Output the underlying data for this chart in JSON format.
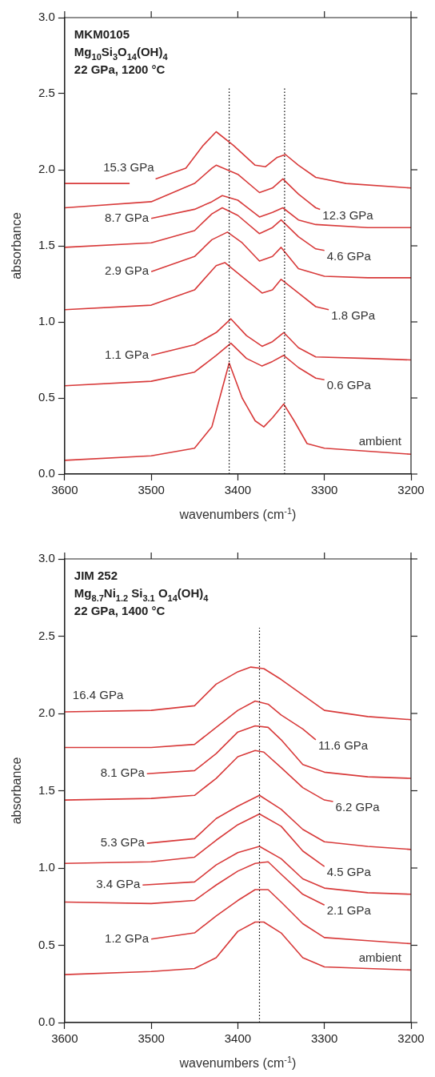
{
  "chart_data": [
    {
      "type": "line",
      "xlabel": "wavenumbers (cm$^{-1}$)",
      "ylabel": "absorbance",
      "xlim": [
        3600,
        3200
      ],
      "xticks": [
        3600,
        3500,
        3400,
        3300,
        3200
      ],
      "ylim": [
        0,
        3
      ],
      "yticks": [
        {
          "value": 0,
          "label": "0.0"
        },
        {
          "value": 0.5,
          "label": "0.5"
        },
        {
          "value": 1,
          "label": "1.0"
        },
        {
          "value": 1.5,
          "label": "1.5"
        },
        {
          "value": 2,
          "label": "2.0"
        },
        {
          "value": 2.5,
          "label": "2.5"
        },
        {
          "value": 3,
          "label": "3.0"
        }
      ],
      "grid": false,
      "marker": "none",
      "line_style": "solid",
      "ref_lines": [
        {
          "axis": "x",
          "value": 3410,
          "color": "#000000",
          "line_style": "dotted"
        },
        {
          "axis": "x",
          "value": 3346,
          "color": "#000000",
          "line_style": "dotted"
        }
      ],
      "annotations": [
        "MKM0105",
        "Mg$_{10}$Si$_{3}$O$_{14}$(OH)$_{4}$",
        "22 GPa, 1200 °C"
      ],
      "series": [
        {
          "name": "ambient",
          "color": "#d83a3a",
          "x": [
            3600,
            3500,
            3450,
            3430,
            3420,
            3410,
            3395,
            3380,
            3370,
            3360,
            3347,
            3335,
            3320,
            3300,
            3250,
            3200
          ],
          "values": [
            0.09,
            0.12,
            0.17,
            0.31,
            0.52,
            0.73,
            0.5,
            0.35,
            0.31,
            0.37,
            0.46,
            0.35,
            0.2,
            0.17,
            0.15,
            0.13
          ]
        },
        {
          "name": "0.6 GPa",
          "color": "#d83a3a",
          "x": [
            3600,
            3500,
            3450,
            3425,
            3408,
            3390,
            3372,
            3360,
            3347,
            3330,
            3310,
            3300
          ],
          "values": [
            0.58,
            0.61,
            0.67,
            0.78,
            0.86,
            0.76,
            0.71,
            0.74,
            0.78,
            0.7,
            0.63,
            0.62
          ]
        },
        {
          "name": "1.1 GPa",
          "color": "#d83a3a",
          "x": [
            3500,
            3450,
            3425,
            3408,
            3390,
            3372,
            3360,
            3347,
            3330,
            3310,
            3250,
            3200
          ],
          "values": [
            0.78,
            0.85,
            0.93,
            1.02,
            0.91,
            0.84,
            0.87,
            0.93,
            0.83,
            0.77,
            0.76,
            0.75
          ]
        },
        {
          "name": "1.8 GPa",
          "color": "#d83a3a",
          "x": [
            3600,
            3500,
            3450,
            3425,
            3415,
            3400,
            3372,
            3360,
            3350,
            3330,
            3310,
            3295
          ],
          "values": [
            1.08,
            1.11,
            1.21,
            1.37,
            1.39,
            1.32,
            1.19,
            1.21,
            1.28,
            1.19,
            1.1,
            1.08
          ]
        },
        {
          "name": "2.9 GPa",
          "color": "#d83a3a",
          "x": [
            3500,
            3450,
            3430,
            3412,
            3395,
            3375,
            3360,
            3350,
            3330,
            3300,
            3250,
            3200
          ],
          "values": [
            1.33,
            1.43,
            1.54,
            1.59,
            1.52,
            1.4,
            1.43,
            1.49,
            1.35,
            1.3,
            1.29,
            1.29
          ]
        },
        {
          "name": "4.6 GPa",
          "color": "#d83a3a",
          "x": [
            3600,
            3500,
            3450,
            3430,
            3418,
            3400,
            3375,
            3360,
            3350,
            3330,
            3310,
            3300
          ],
          "values": [
            1.49,
            1.52,
            1.6,
            1.71,
            1.75,
            1.7,
            1.58,
            1.62,
            1.67,
            1.56,
            1.48,
            1.47
          ]
        },
        {
          "name": "8.7 GPa",
          "color": "#d83a3a",
          "x": [
            3500,
            3450,
            3430,
            3418,
            3400,
            3375,
            3360,
            3348,
            3330,
            3310,
            3250,
            3200
          ],
          "values": [
            1.68,
            1.74,
            1.79,
            1.83,
            1.8,
            1.69,
            1.72,
            1.75,
            1.67,
            1.64,
            1.62,
            1.62
          ]
        },
        {
          "name": "12.3 GPa",
          "color": "#d83a3a",
          "x": [
            3600,
            3500,
            3450,
            3430,
            3425,
            3400,
            3375,
            3360,
            3348,
            3330,
            3310,
            3305
          ],
          "values": [
            1.75,
            1.79,
            1.91,
            2.01,
            2.03,
            1.97,
            1.85,
            1.88,
            1.94,
            1.84,
            1.75,
            1.74
          ]
        },
        {
          "name": "15.3 GPa",
          "color": "#d83a3a",
          "x": [
            3600,
            3525,
            3510,
            3495,
            3460,
            3440,
            3425,
            3405,
            3380,
            3368,
            3355,
            3345,
            3330,
            3310,
            3275,
            3200
          ],
          "values": [
            1.91,
            1.91,
            null,
            1.94,
            2.01,
            2.16,
            2.25,
            2.16,
            2.03,
            2.02,
            2.08,
            2.1,
            2.03,
            1.95,
            1.91,
            1.88
          ]
        }
      ]
    },
    {
      "type": "line",
      "xlabel": "wavenumbers (cm$^{-1}$)",
      "ylabel": "absorbance",
      "xlim": [
        3600,
        3200
      ],
      "xticks": [
        3600,
        3500,
        3400,
        3300,
        3200
      ],
      "ylim": [
        0,
        3
      ],
      "yticks": [
        {
          "value": 0,
          "label": "0.0"
        },
        {
          "value": 0.5,
          "label": "0.5"
        },
        {
          "value": 1,
          "label": "1.0"
        },
        {
          "value": 1.5,
          "label": "1.5"
        },
        {
          "value": 2,
          "label": "2.0"
        },
        {
          "value": 2.5,
          "label": "2.5"
        },
        {
          "value": 3,
          "label": "3.0"
        }
      ],
      "grid": false,
      "marker": "none",
      "line_style": "solid",
      "ref_lines": [
        {
          "axis": "x",
          "value": 3375,
          "color": "#000000",
          "line_style": "dotted"
        }
      ],
      "annotations": [
        "JIM 252",
        "Mg$_{8.7}$Ni$_{1.2}$ Si$_{3.1}$ O$_{14}$(OH)$_{4}$",
        "22 GPa, 1400 °C"
      ],
      "series": [
        {
          "name": "ambient",
          "color": "#d83a3a",
          "x": [
            3600,
            3500,
            3450,
            3425,
            3400,
            3380,
            3370,
            3350,
            3325,
            3300,
            3250,
            3200
          ],
          "values": [
            0.31,
            0.33,
            0.35,
            0.42,
            0.59,
            0.65,
            0.65,
            0.58,
            0.42,
            0.36,
            0.35,
            0.34
          ]
        },
        {
          "name": "1.2 GPa",
          "color": "#d83a3a",
          "x": [
            3500,
            3450,
            3425,
            3400,
            3380,
            3365,
            3350,
            3325,
            3300,
            3250,
            3200
          ],
          "values": [
            0.54,
            0.58,
            0.69,
            0.79,
            0.86,
            0.86,
            0.78,
            0.64,
            0.55,
            0.53,
            0.51
          ]
        },
        {
          "name": "2.1 GPa",
          "color": "#d83a3a",
          "x": [
            3600,
            3500,
            3450,
            3425,
            3400,
            3380,
            3365,
            3350,
            3325,
            3300
          ],
          "values": [
            0.78,
            0.77,
            0.79,
            0.89,
            0.98,
            1.03,
            1.04,
            0.96,
            0.83,
            0.76
          ]
        },
        {
          "name": "3.4 GPa",
          "color": "#d83a3a",
          "x": [
            3510,
            3450,
            3425,
            3400,
            3375,
            3350,
            3325,
            3300,
            3250,
            3200
          ],
          "values": [
            0.89,
            0.91,
            1.02,
            1.1,
            1.14,
            1.06,
            0.93,
            0.87,
            0.84,
            0.83
          ]
        },
        {
          "name": "4.5 GPa",
          "color": "#d83a3a",
          "x": [
            3600,
            3500,
            3450,
            3425,
            3400,
            3375,
            3350,
            3325,
            3300
          ],
          "values": [
            1.03,
            1.04,
            1.07,
            1.18,
            1.28,
            1.35,
            1.27,
            1.11,
            1.01
          ]
        },
        {
          "name": "5.3 GPa",
          "color": "#d83a3a",
          "x": [
            3505,
            3450,
            3425,
            3400,
            3375,
            3350,
            3325,
            3300,
            3250,
            3200
          ],
          "values": [
            1.16,
            1.19,
            1.32,
            1.4,
            1.47,
            1.38,
            1.25,
            1.17,
            1.14,
            1.12
          ]
        },
        {
          "name": "6.2 GPa",
          "color": "#d83a3a",
          "x": [
            3600,
            3500,
            3450,
            3425,
            3400,
            3380,
            3370,
            3350,
            3325,
            3300,
            3290
          ],
          "values": [
            1.44,
            1.45,
            1.47,
            1.58,
            1.72,
            1.76,
            1.75,
            1.65,
            1.52,
            1.44,
            1.43
          ]
        },
        {
          "name": "8.1 GPa",
          "color": "#d83a3a",
          "x": [
            3505,
            3450,
            3425,
            3400,
            3380,
            3365,
            3350,
            3325,
            3300,
            3250,
            3200
          ],
          "values": [
            1.61,
            1.63,
            1.74,
            1.88,
            1.92,
            1.91,
            1.83,
            1.67,
            1.62,
            1.59,
            1.58
          ]
        },
        {
          "name": "11.6 GPa",
          "color": "#d83a3a",
          "x": [
            3600,
            3500,
            3450,
            3425,
            3400,
            3380,
            3365,
            3350,
            3325,
            3310
          ],
          "values": [
            1.78,
            1.78,
            1.8,
            1.91,
            2.02,
            2.08,
            2.06,
            1.99,
            1.9,
            1.83
          ]
        },
        {
          "name": "16.4 GPa",
          "color": "#d83a3a",
          "x": [
            3600,
            3500,
            3450,
            3425,
            3400,
            3385,
            3370,
            3350,
            3325,
            3300,
            3250,
            3200
          ],
          "values": [
            2.01,
            2.02,
            2.05,
            2.19,
            2.27,
            2.3,
            2.29,
            2.22,
            2.12,
            2.02,
            1.98,
            1.96
          ]
        }
      ]
    }
  ]
}
